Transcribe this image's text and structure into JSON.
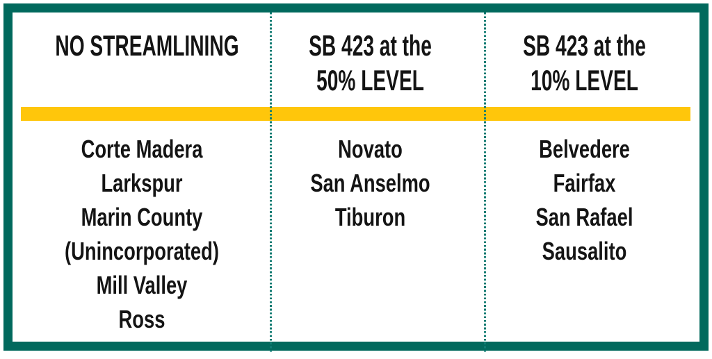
{
  "chart_data": {
    "type": "table",
    "columns": [
      {
        "header": "NO STREAMLINING",
        "header_lines": [
          "NO STREAMLINING"
        ],
        "cities": [
          "Corte Madera",
          "Larkspur",
          "Marin County (Unincorporated)",
          "Mill Valley",
          "Ross"
        ],
        "display_lines": [
          "Corte Madera",
          "Larkspur",
          "Marin County",
          "(Unincorporated)",
          "Mill Valley",
          "Ross"
        ]
      },
      {
        "header": "SB 423 at the 50% LEVEL",
        "header_lines": [
          "SB 423 at the",
          "50% LEVEL"
        ],
        "cities": [
          "Novato",
          "San Anselmo",
          "Tiburon"
        ],
        "display_lines": [
          "Novato",
          "San Anselmo",
          "Tiburon"
        ]
      },
      {
        "header": "SB 423 at the 10% LEVEL",
        "header_lines": [
          "SB 423 at the",
          "10% LEVEL"
        ],
        "cities": [
          "Belvedere",
          "Fairfax",
          "San Rafael",
          "Sausalito"
        ],
        "display_lines": [
          "Belvedere",
          "Fairfax",
          "San Rafael",
          "Sausalito"
        ]
      }
    ]
  },
  "colors": {
    "frame_border": "#01695D",
    "column_divider_dots": "#107B72",
    "header_underline_bar": "#FFC60B",
    "text": "#141414",
    "background": "#FFFFFF"
  }
}
